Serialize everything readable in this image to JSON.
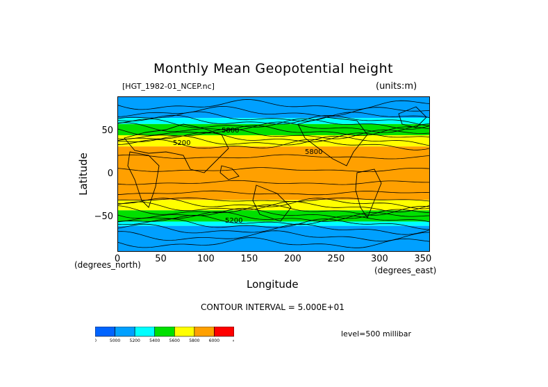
{
  "header": {
    "title": "Monthly Mean Geopotential height",
    "source_file": "[HGT_1982-01_NCEP.nc]",
    "units": "(units:m)"
  },
  "axes": {
    "xlabel": "Longitude",
    "ylabel": "Latitude",
    "x_unit_note": "(degrees_east)",
    "y_unit_note": "(degrees_north)",
    "x_ticks": [
      "0",
      "50",
      "100",
      "150",
      "200",
      "250",
      "300",
      "350"
    ],
    "y_ticks": [
      "50",
      "0",
      "−50"
    ]
  },
  "footer": {
    "contour_interval": "CONTOUR INTERVAL = 5.000E+01",
    "level": "level=500 millibar"
  },
  "colorbar": {
    "labels": [
      "0",
      "5000",
      "5200",
      "5400",
      "5600",
      "5800",
      "6000",
      "∞"
    ],
    "colors": [
      "#0064ff",
      "#00a0ff",
      "#00ffff",
      "#00e000",
      "#ffff00",
      "#ffa000",
      "#ff0000"
    ]
  },
  "contour_labels": [
    "5800",
    "5200",
    "5800",
    "5200"
  ],
  "chart_data": {
    "type": "heatmap",
    "title": "Monthly Mean Geopotential height",
    "xlabel": "Longitude",
    "ylabel": "Latitude",
    "xlim": [
      0,
      360
    ],
    "ylim": [
      -90,
      90
    ],
    "x_ticks": [
      0,
      50,
      100,
      150,
      200,
      250,
      300,
      350
    ],
    "y_ticks": [
      50,
      0,
      -50
    ],
    "units": "m",
    "level": "500 millibar",
    "contour_interval": 50,
    "color_levels": [
      0,
      5000,
      5200,
      5400,
      5600,
      5800,
      6000
    ],
    "zonal_mean_height_bands": [
      {
        "lat_from": 90,
        "lat_to": 65,
        "height": "5000-5200"
      },
      {
        "lat_from": 65,
        "lat_to": 58,
        "height": "5200-5400"
      },
      {
        "lat_from": 58,
        "lat_to": 45,
        "height": "5400-5600"
      },
      {
        "lat_from": 45,
        "lat_to": 32,
        "height": "5600-5800"
      },
      {
        "lat_from": 32,
        "lat_to": -30,
        "height": "5800-6000"
      },
      {
        "lat_from": -30,
        "lat_to": -42,
        "height": "5600-5800"
      },
      {
        "lat_from": -42,
        "lat_to": -55,
        "height": "5400-5600"
      },
      {
        "lat_from": -55,
        "lat_to": -60,
        "height": "5200-5400"
      },
      {
        "lat_from": -60,
        "lat_to": -90,
        "height": "5000-5200"
      }
    ],
    "grid": false,
    "legend": "bottom"
  }
}
